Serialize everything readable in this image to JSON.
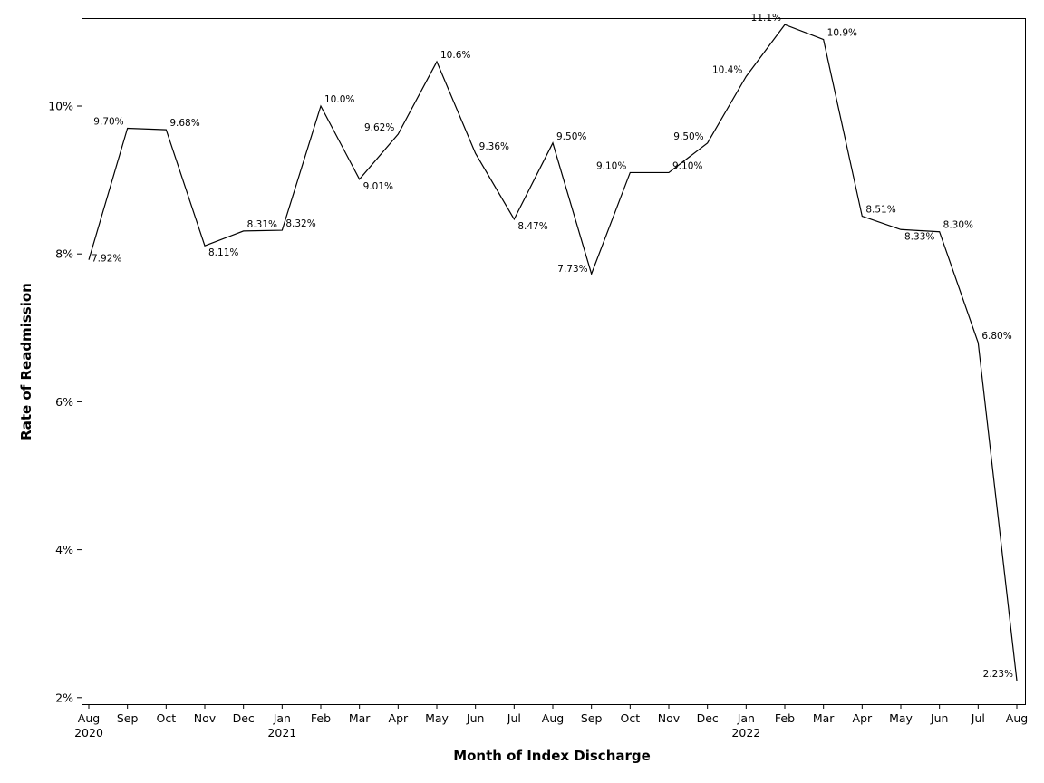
{
  "chart_data": {
    "type": "line",
    "xlabel": "Month of Index Discharge",
    "ylabel": "Rate of Readmission",
    "ylim": [
      1.9,
      11.3
    ],
    "yticks": [
      {
        "value": 2,
        "label": "2%"
      },
      {
        "value": 4,
        "label": "4%"
      },
      {
        "value": 6,
        "label": "6%"
      },
      {
        "value": 8,
        "label": "8%"
      },
      {
        "value": 10,
        "label": "10%"
      }
    ],
    "grid": false,
    "legend": "none",
    "categories": [
      {
        "month": "Aug",
        "year": "2020"
      },
      {
        "month": "Sep",
        "year": ""
      },
      {
        "month": "Oct",
        "year": ""
      },
      {
        "month": "Nov",
        "year": ""
      },
      {
        "month": "Dec",
        "year": ""
      },
      {
        "month": "Jan",
        "year": "2021"
      },
      {
        "month": "Feb",
        "year": ""
      },
      {
        "month": "Mar",
        "year": ""
      },
      {
        "month": "Apr",
        "year": ""
      },
      {
        "month": "May",
        "year": ""
      },
      {
        "month": "Jun",
        "year": ""
      },
      {
        "month": "Jul",
        "year": ""
      },
      {
        "month": "Aug",
        "year": ""
      },
      {
        "month": "Sep",
        "year": ""
      },
      {
        "month": "Oct",
        "year": ""
      },
      {
        "month": "Nov",
        "year": ""
      },
      {
        "month": "Dec",
        "year": ""
      },
      {
        "month": "Jan",
        "year": "2022"
      },
      {
        "month": "Feb",
        "year": ""
      },
      {
        "month": "Mar",
        "year": ""
      },
      {
        "month": "Apr",
        "year": ""
      },
      {
        "month": "May",
        "year": ""
      },
      {
        "month": "Jun",
        "year": ""
      },
      {
        "month": "Jul",
        "year": ""
      },
      {
        "month": "Aug",
        "year": ""
      }
    ],
    "values": [
      7.92,
      9.7,
      9.68,
      8.11,
      8.31,
      8.32,
      10.0,
      9.01,
      9.62,
      10.6,
      9.36,
      8.47,
      9.5,
      7.73,
      9.1,
      9.1,
      9.5,
      10.4,
      11.1,
      10.9,
      8.51,
      8.33,
      8.3,
      6.8,
      2.23
    ],
    "data_labels": [
      "7.92%",
      "9.70%",
      "9.68%",
      "8.11%",
      "8.31%",
      "8.32%",
      "10.0%",
      "9.01%",
      "9.62%",
      "10.6%",
      "9.36%",
      "8.47%",
      "9.50%",
      "7.73%",
      "9.10%",
      "9.10%",
      "9.50%",
      "10.4%",
      "11.1%",
      "10.9%",
      "8.51%",
      "8.33%",
      "8.30%",
      "6.80%",
      "2.23%"
    ],
    "label_placement": [
      "right",
      "upleft",
      "upright",
      "downright",
      "upright",
      "upright",
      "upright",
      "downright",
      "upleft",
      "upright",
      "upright",
      "downright",
      "upright",
      "downleft",
      "upleft",
      "upright",
      "upleft",
      "upleft",
      "upleft",
      "upright",
      "upright",
      "downright",
      "upright",
      "upright",
      "upleft"
    ],
    "line_color": "#000000"
  }
}
